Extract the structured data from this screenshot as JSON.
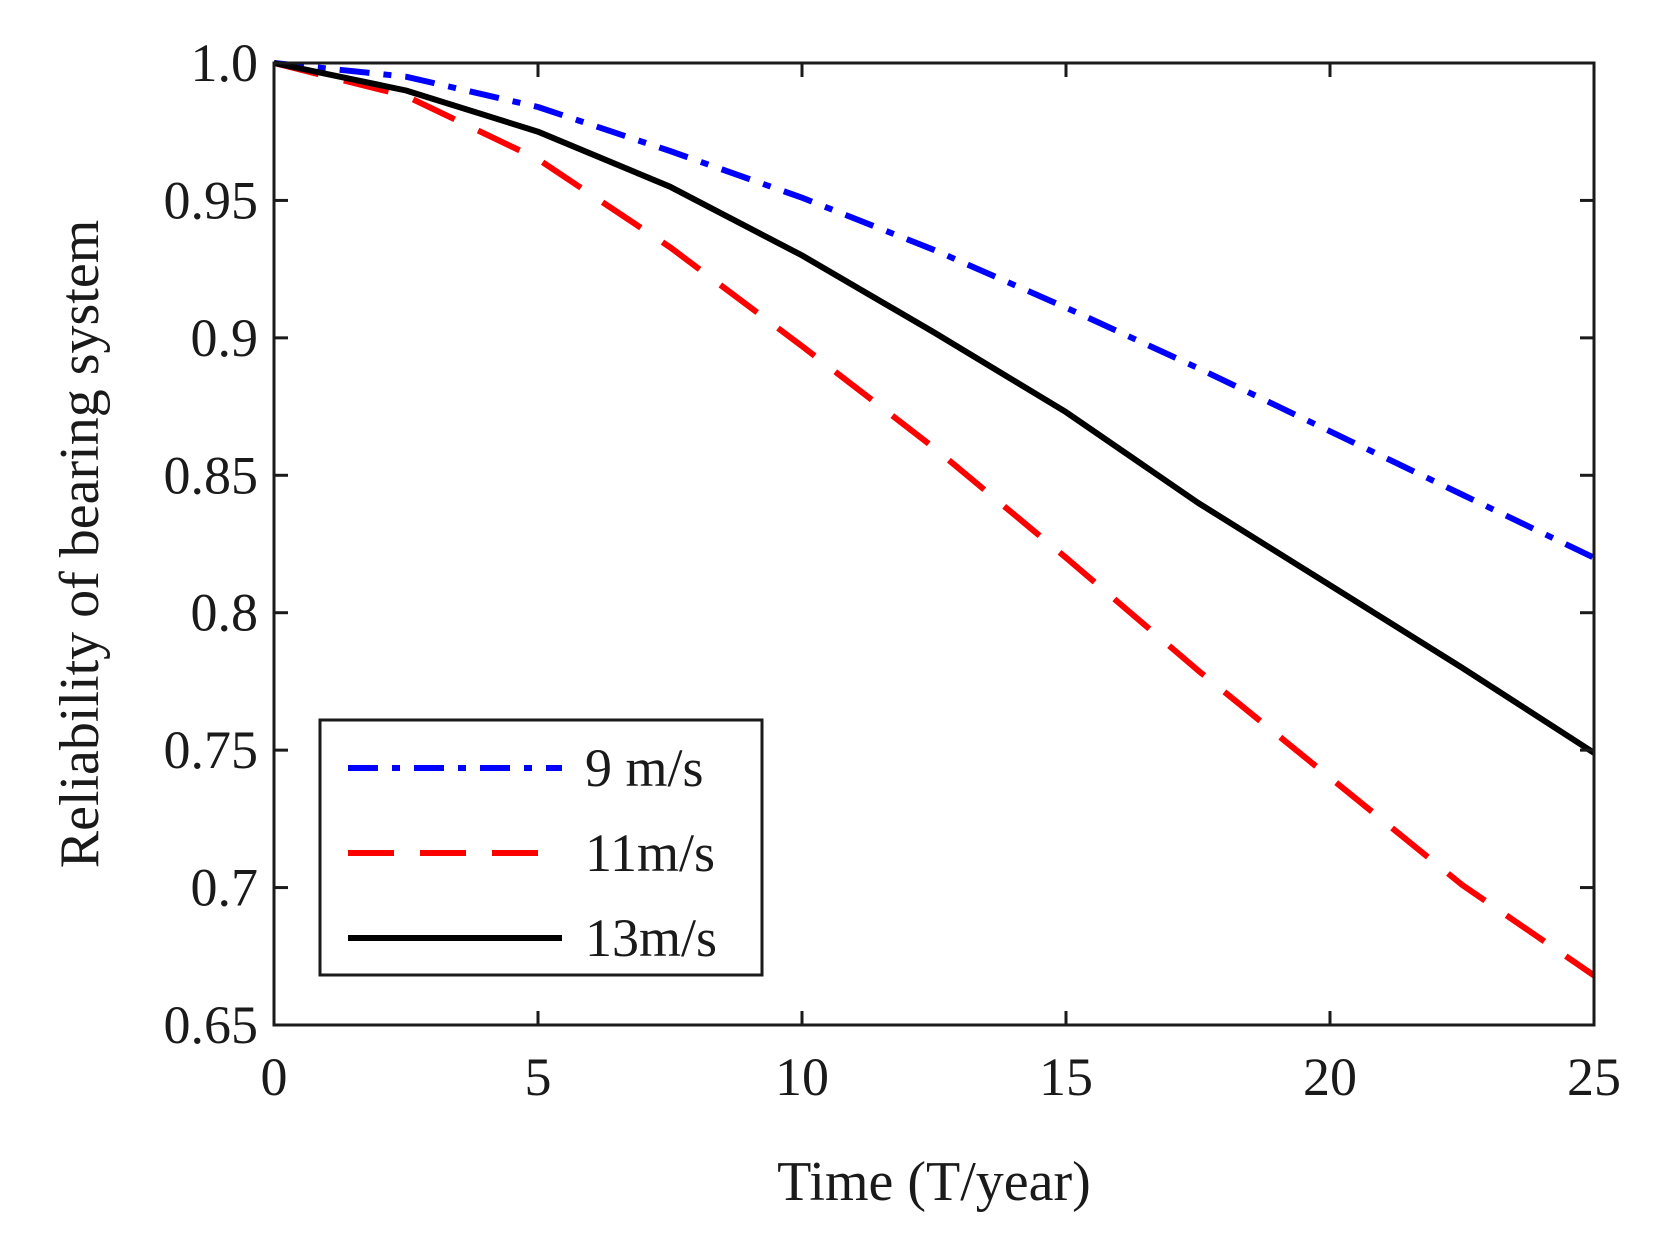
{
  "chart_data": {
    "type": "line",
    "title": "",
    "xlabel": "Time (T/year)",
    "ylabel": "Reliability of bearing system",
    "xlim": [
      0,
      25
    ],
    "ylim": [
      0.65,
      1.0
    ],
    "xticks": [
      0,
      5,
      10,
      15,
      20,
      25
    ],
    "xtick_labels": [
      "0",
      "5",
      "10",
      "15",
      "20",
      "25"
    ],
    "yticks": [
      0.65,
      0.7,
      0.75,
      0.8,
      0.85,
      0.9,
      0.95,
      1.0
    ],
    "ytick_labels": [
      "0.65",
      "0.7",
      "0.75",
      "0.8",
      "0.85",
      "0.9",
      "0.95",
      "1.0"
    ],
    "grid": false,
    "legend_position": "bottom-left",
    "series": [
      {
        "name": "9 m/s",
        "color": "#0000ff",
        "style": "dash-dot",
        "x": [
          0,
          2.5,
          5,
          7.5,
          10,
          12.5,
          15,
          17.5,
          20,
          22.5,
          25
        ],
        "y": [
          1.0,
          0.995,
          0.984,
          0.968,
          0.951,
          0.932,
          0.911,
          0.889,
          0.866,
          0.843,
          0.82
        ]
      },
      {
        "name": "11m/s",
        "color": "#ff0000",
        "style": "dashed",
        "x": [
          0,
          2.5,
          5,
          7.5,
          10,
          12.5,
          15,
          17.5,
          20,
          22.5,
          25
        ],
        "y": [
          1.0,
          0.988,
          0.965,
          0.933,
          0.897,
          0.86,
          0.82,
          0.779,
          0.74,
          0.701,
          0.668
        ]
      },
      {
        "name": "13m/s",
        "color": "#000000",
        "style": "solid",
        "x": [
          0,
          2.5,
          5,
          7.5,
          10,
          12.5,
          15,
          17.5,
          20,
          22.5,
          25
        ],
        "y": [
          1.0,
          0.99,
          0.975,
          0.955,
          0.93,
          0.902,
          0.873,
          0.84,
          0.81,
          0.78,
          0.749
        ]
      }
    ]
  }
}
